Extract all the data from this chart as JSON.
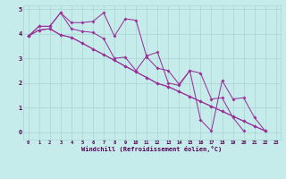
{
  "xlabel": "Windchill (Refroidissement éolien,°C)",
  "background_color": "#c5ecea",
  "grid_color": "#a8d4d2",
  "line_color": "#993399",
  "xlim_min": -0.5,
  "xlim_max": 23.4,
  "ylim_min": -0.3,
  "ylim_max": 5.15,
  "xticks": [
    0,
    1,
    2,
    3,
    4,
    5,
    6,
    7,
    8,
    9,
    10,
    11,
    12,
    13,
    14,
    15,
    16,
    17,
    18,
    19,
    20,
    21,
    22,
    23
  ],
  "yticks": [
    0,
    1,
    2,
    3,
    4,
    5
  ],
  "s1_x": [
    0,
    1,
    2,
    3,
    4,
    5,
    6,
    7,
    8,
    9,
    10,
    11,
    12,
    13,
    14,
    15,
    16,
    17,
    18,
    19,
    20,
    21,
    22
  ],
  "s1_y": [
    3.9,
    4.3,
    4.3,
    4.85,
    4.2,
    4.1,
    4.05,
    3.8,
    3.0,
    3.05,
    2.5,
    3.1,
    3.25,
    2.0,
    1.9,
    2.5,
    0.5,
    0.05,
    2.1,
    1.35,
    1.4,
    0.6,
    0.05
  ],
  "s2_x": [
    0,
    1,
    2,
    3,
    4,
    5,
    6,
    7,
    8,
    9,
    10,
    11,
    12,
    13,
    14,
    15,
    16,
    17,
    18,
    19,
    20
  ],
  "s2_y": [
    3.9,
    4.3,
    4.3,
    4.85,
    4.45,
    4.45,
    4.5,
    4.85,
    3.9,
    4.6,
    4.55,
    3.05,
    2.6,
    2.5,
    1.95,
    2.5,
    2.4,
    1.35,
    1.4,
    0.6,
    0.05
  ],
  "s3_x": [
    0,
    1,
    2,
    3,
    4,
    5,
    6,
    7,
    8,
    9,
    10,
    11,
    12,
    13,
    14,
    15,
    16,
    17,
    18,
    19,
    20,
    21,
    22
  ],
  "s3_y": [
    3.9,
    4.15,
    4.2,
    3.95,
    3.85,
    3.62,
    3.38,
    3.15,
    2.92,
    2.68,
    2.45,
    2.22,
    1.98,
    1.85,
    1.65,
    1.45,
    1.25,
    1.05,
    0.85,
    0.65,
    0.45,
    0.25,
    0.05
  ],
  "s4_x": [
    0,
    1,
    2,
    3,
    4,
    5,
    6,
    7,
    8,
    9,
    10,
    11,
    12,
    13,
    14,
    15,
    16,
    17,
    18,
    19,
    20,
    21,
    22
  ],
  "s4_y": [
    3.9,
    4.15,
    4.2,
    3.95,
    3.85,
    3.62,
    3.38,
    3.15,
    2.92,
    2.68,
    2.45,
    2.22,
    1.98,
    1.85,
    1.65,
    1.45,
    1.25,
    1.05,
    0.85,
    0.65,
    0.45,
    0.25,
    0.05
  ]
}
